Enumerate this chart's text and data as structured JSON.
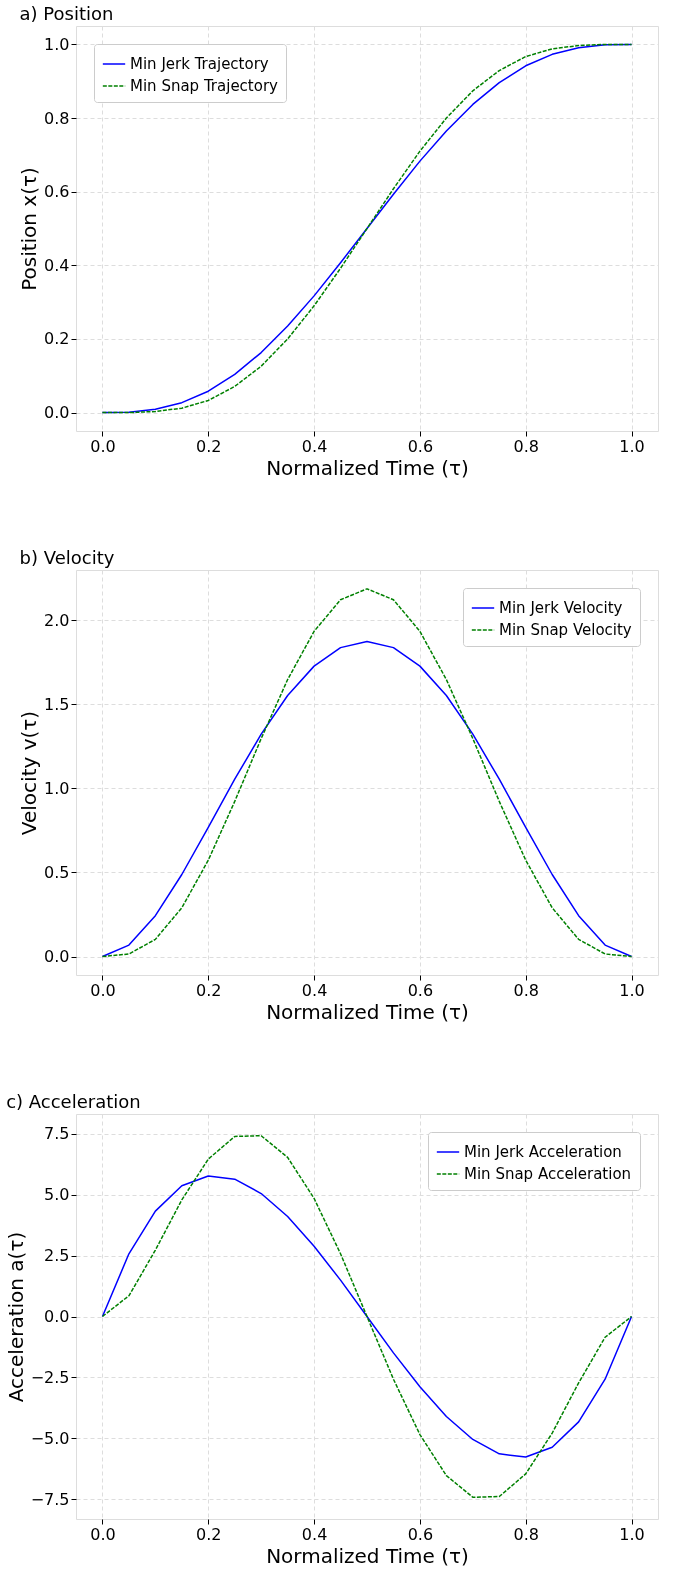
{
  "chart_data": [
    {
      "type": "line",
      "title": "a) Position",
      "xlabel": "Normalized Time (τ)",
      "ylabel": "Position x(τ)",
      "x": [
        0,
        0.05,
        0.1,
        0.15,
        0.2,
        0.25,
        0.3,
        0.35,
        0.4,
        0.45,
        0.5,
        0.55,
        0.6,
        0.65,
        0.7,
        0.75,
        0.8,
        0.85,
        0.9,
        0.95,
        1
      ],
      "xlim": [
        -0.05,
        1.05
      ],
      "xticks": [
        {
          "value": 0,
          "label": "0.0"
        },
        {
          "value": 0.2,
          "label": "0.2"
        },
        {
          "value": 0.4,
          "label": "0.4"
        },
        {
          "value": 0.6,
          "label": "0.6"
        },
        {
          "value": 0.8,
          "label": "0.8"
        },
        {
          "value": 1,
          "label": "1.0"
        }
      ],
      "ylim": [
        -0.05,
        1.05
      ],
      "yticks": [
        {
          "value": 0,
          "label": "0.0"
        },
        {
          "value": 0.2,
          "label": "0.2"
        },
        {
          "value": 0.4,
          "label": "0.4"
        },
        {
          "value": 0.6,
          "label": "0.6"
        },
        {
          "value": 0.8,
          "label": "0.8"
        },
        {
          "value": 1,
          "label": "1.0"
        }
      ],
      "grid": true,
      "legend": "top left",
      "marker": "none",
      "series": [
        {
          "name": "Min Jerk Trajectory",
          "color": "#0000ff",
          "line_style": "solid",
          "values": [
            0,
            0.001,
            0.009,
            0.027,
            0.058,
            0.104,
            0.163,
            0.235,
            0.317,
            0.407,
            0.5,
            0.593,
            0.683,
            0.765,
            0.837,
            0.896,
            0.942,
            0.973,
            0.991,
            0.999,
            1
          ]
        },
        {
          "name": "Min Snap Trajectory",
          "color": "#008000",
          "line_style": "dashed",
          "values": [
            0,
            0.0,
            0.003,
            0.012,
            0.033,
            0.071,
            0.126,
            0.2,
            0.29,
            0.392,
            0.5,
            0.608,
            0.71,
            0.8,
            0.874,
            0.929,
            0.967,
            0.988,
            0.997,
            1,
            1
          ]
        }
      ]
    },
    {
      "type": "line",
      "title": "b) Velocity",
      "xlabel": "Normalized Time (τ)",
      "ylabel": "Velocity v(τ)",
      "x": [
        0,
        0.05,
        0.1,
        0.15,
        0.2,
        0.25,
        0.3,
        0.35,
        0.4,
        0.45,
        0.5,
        0.55,
        0.6,
        0.65,
        0.7,
        0.75,
        0.8,
        0.85,
        0.9,
        0.95,
        1
      ],
      "xlim": [
        -0.05,
        1.05
      ],
      "xticks": [
        {
          "value": 0,
          "label": "0.0"
        },
        {
          "value": 0.2,
          "label": "0.2"
        },
        {
          "value": 0.4,
          "label": "0.4"
        },
        {
          "value": 0.6,
          "label": "0.6"
        },
        {
          "value": 0.8,
          "label": "0.8"
        },
        {
          "value": 1,
          "label": "1.0"
        }
      ],
      "ylim": [
        -0.11,
        2.3
      ],
      "yticks": [
        {
          "value": 0,
          "label": "0.0"
        },
        {
          "value": 0.5,
          "label": "0.5"
        },
        {
          "value": 1,
          "label": "1.0"
        },
        {
          "value": 1.5,
          "label": "1.5"
        },
        {
          "value": 2,
          "label": "2.0"
        }
      ],
      "grid": true,
      "legend": "top right",
      "marker": "none",
      "series": [
        {
          "name": "Min Jerk Velocity",
          "color": "#0000ff",
          "line_style": "solid",
          "values": [
            0,
            0.068,
            0.243,
            0.488,
            0.768,
            1.055,
            1.323,
            1.553,
            1.728,
            1.838,
            1.875,
            1.838,
            1.728,
            1.553,
            1.323,
            1.055,
            0.768,
            0.488,
            0.243,
            0.068,
            0
          ]
        },
        {
          "name": "Min Snap Velocity",
          "color": "#008000",
          "line_style": "dashed",
          "values": [
            0,
            0.015,
            0.102,
            0.29,
            0.573,
            0.923,
            1.297,
            1.648,
            1.935,
            2.123,
            2.188,
            2.123,
            1.935,
            1.648,
            1.297,
            0.923,
            0.573,
            0.29,
            0.102,
            0.015,
            0
          ]
        }
      ]
    },
    {
      "type": "line",
      "title": "c) Acceleration",
      "xlabel": "Normalized Time (τ)",
      "ylabel": "Acceleration a(τ)",
      "x": [
        0,
        0.05,
        0.1,
        0.15,
        0.2,
        0.25,
        0.3,
        0.35,
        0.4,
        0.45,
        0.5,
        0.55,
        0.6,
        0.65,
        0.7,
        0.75,
        0.8,
        0.85,
        0.9,
        0.95,
        1
      ],
      "xlim": [
        -0.05,
        1.05
      ],
      "xticks": [
        {
          "value": 0,
          "label": "0.0"
        },
        {
          "value": 0.2,
          "label": "0.2"
        },
        {
          "value": 0.4,
          "label": "0.4"
        },
        {
          "value": 0.6,
          "label": "0.6"
        },
        {
          "value": 0.8,
          "label": "0.8"
        },
        {
          "value": 1,
          "label": "1.0"
        }
      ],
      "ylim": [
        -8.3,
        8.3
      ],
      "yticks": [
        {
          "value": -7.5,
          "label": "−7.5"
        },
        {
          "value": -5,
          "label": "−5.0"
        },
        {
          "value": -2.5,
          "label": "−2.5"
        },
        {
          "value": 0,
          "label": "0.0"
        },
        {
          "value": 2.5,
          "label": "2.5"
        },
        {
          "value": 5,
          "label": "5.0"
        },
        {
          "value": 7.5,
          "label": "7.5"
        }
      ],
      "grid": true,
      "legend": "top right",
      "marker": "none",
      "series": [
        {
          "name": "Min Jerk Acceleration",
          "color": "#0000ff",
          "line_style": "solid",
          "values": [
            0,
            2.57,
            4.32,
            5.36,
            5.76,
            5.63,
            5.04,
            4.1,
            2.88,
            1.49,
            0,
            -1.49,
            -2.88,
            -4.1,
            -5.04,
            -5.63,
            -5.76,
            -5.36,
            -4.32,
            -2.57,
            0
          ]
        },
        {
          "name": "Min Snap Acceleration",
          "color": "#008000",
          "line_style": "dashed",
          "values": [
            0,
            0.85,
            2.72,
            4.78,
            6.45,
            7.38,
            7.41,
            6.52,
            4.84,
            2.57,
            0,
            -2.57,
            -4.84,
            -6.52,
            -7.41,
            -7.38,
            -6.45,
            -4.78,
            -2.72,
            -0.85,
            0
          ]
        }
      ]
    }
  ]
}
